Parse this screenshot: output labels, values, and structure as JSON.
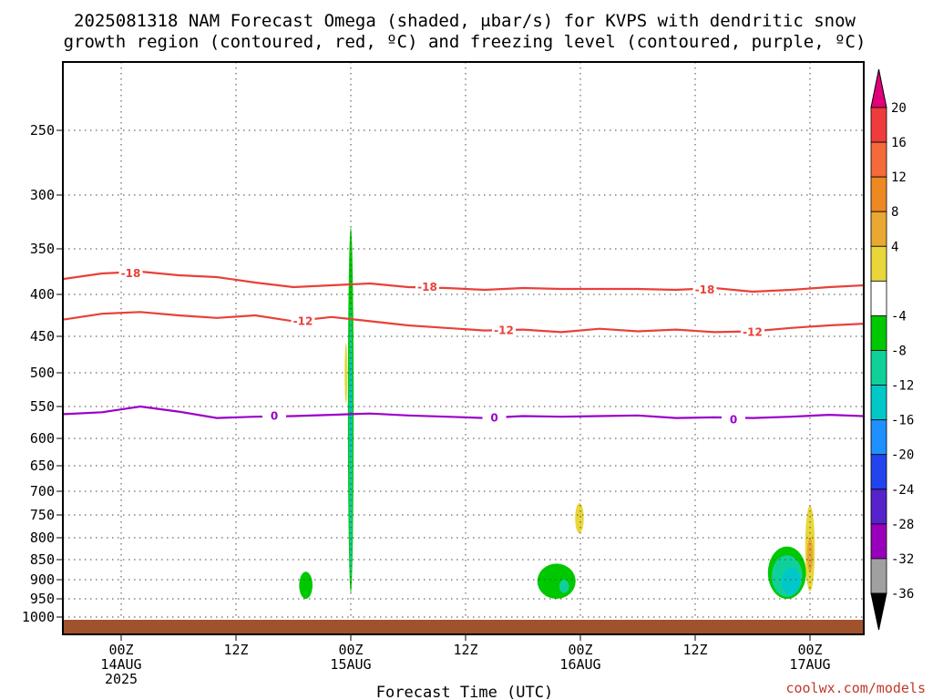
{
  "chart_data": {
    "type": "heatmap",
    "title_line1": "2025081318 NAM Forecast Omega (shaded, μbar/s) for KVPS with dendritic snow",
    "title_line2": "growth region (contoured, red, ºC) and freezing level (contoured, purple, ºC)",
    "xlabel": "Forecast Time (UTC)",
    "watermark": "coolwx.com/models",
    "y_ticks": [
      250,
      300,
      350,
      400,
      450,
      500,
      550,
      600,
      650,
      700,
      750,
      800,
      850,
      900,
      950,
      1000
    ],
    "x_ticks": [
      {
        "hour": 0,
        "top": "00Z",
        "line2": "14AUG",
        "line3": "2025"
      },
      {
        "hour": 12,
        "top": "12Z",
        "line2": "",
        "line3": ""
      },
      {
        "hour": 24,
        "top": "00Z",
        "line2": "15AUG",
        "line3": ""
      },
      {
        "hour": 36,
        "top": "12Z",
        "line2": "",
        "line3": ""
      },
      {
        "hour": 48,
        "top": "00Z",
        "line2": "16AUG",
        "line3": ""
      },
      {
        "hour": 60,
        "top": "12Z",
        "line2": "",
        "line3": ""
      },
      {
        "hour": 72,
        "top": "00Z",
        "line2": "17AUG",
        "line3": ""
      }
    ],
    "colorbar": {
      "labels": [
        "20",
        "16",
        "12",
        "8",
        "4",
        "-4",
        "-8",
        "-12",
        "-16",
        "-20",
        "-24",
        "-28",
        "-32",
        "-36"
      ],
      "bands_top_to_bottom": [
        "#ee3b3b",
        "#f56a3a",
        "#ee8822",
        "#e8a832",
        "#e8d63a",
        "#ffffff",
        "#00c800",
        "#10d09a",
        "#00c8c8",
        "#1e90ff",
        "#2244ee",
        "#5522cc",
        "#9900bb",
        "#a0a0a0"
      ],
      "top_arrow_color": "#e0007a",
      "bottom_arrow_color": "#000000"
    },
    "series": [
      {
        "name": "-18",
        "color": "#e8413a",
        "x": [
          -6,
          -2,
          2,
          6,
          10,
          14,
          18,
          22,
          26,
          30,
          34,
          38,
          42,
          46,
          50,
          54,
          58,
          62,
          66,
          70,
          74,
          78,
          82
        ],
        "y": [
          383,
          377,
          375,
          379,
          381,
          387,
          392,
          390,
          388,
          392,
          393,
          395,
          393,
          394,
          394,
          394,
          395,
          393,
          397,
          395,
          392,
          390,
          391
        ],
        "labels": [
          {
            "x": 1,
            "y": 377
          },
          {
            "x": 32,
            "y": 392
          },
          {
            "x": 61,
            "y": 395
          }
        ]
      },
      {
        "name": "-12",
        "color": "#e8413a",
        "x": [
          -6,
          -2,
          2,
          6,
          10,
          14,
          18,
          22,
          26,
          30,
          34,
          38,
          42,
          46,
          50,
          54,
          58,
          62,
          66,
          70,
          74,
          78,
          82
        ],
        "y": [
          430,
          423,
          421,
          425,
          428,
          425,
          432,
          427,
          432,
          437,
          440,
          443,
          442,
          445,
          441,
          444,
          442,
          445,
          444,
          440,
          437,
          435,
          441
        ],
        "labels": [
          {
            "x": 19,
            "y": 432
          },
          {
            "x": 40,
            "y": 443
          },
          {
            "x": 66,
            "y": 445
          }
        ]
      },
      {
        "name": "0",
        "color": "#9a00c8",
        "x": [
          -6,
          -2,
          2,
          6,
          10,
          14,
          18,
          22,
          26,
          30,
          34,
          38,
          42,
          46,
          50,
          54,
          58,
          62,
          66,
          70,
          74,
          78,
          82
        ],
        "y": [
          562,
          559,
          550,
          558,
          568,
          566,
          565,
          563,
          561,
          564,
          566,
          568,
          565,
          566,
          565,
          564,
          568,
          567,
          568,
          566,
          563,
          565,
          567
        ],
        "labels": [
          {
            "x": 16,
            "y": 565
          },
          {
            "x": 39,
            "y": 568
          },
          {
            "x": 64,
            "y": 571
          }
        ]
      }
    ],
    "shaded_areas": [
      {
        "value": "-4",
        "color": "#00c800",
        "cx": 24,
        "p_top": 330,
        "p_bot": 935,
        "half_w": 0.3
      },
      {
        "value": "-8",
        "color": "#10d09a",
        "cx": 24,
        "p_top": 410,
        "p_bot": 900,
        "half_w": 0.17
      },
      {
        "value": "-12",
        "color": "#00c8c8",
        "cx": 24,
        "p_top": 470,
        "p_bot": 640,
        "half_w": 0.08
      },
      {
        "value": "4",
        "color": "#e8d63a",
        "cx": 23.5,
        "p_top": 460,
        "p_bot": 545,
        "half_w": 0.12
      },
      {
        "value": "-4",
        "color": "#00c800",
        "cx": 19.3,
        "p_top": 880,
        "p_bot": 950,
        "half_w": 0.7
      },
      {
        "value": "-4",
        "color": "#00c800",
        "cx": 45.5,
        "p_top": 860,
        "p_bot": 950,
        "half_w": 2.0
      },
      {
        "value": "-8",
        "color": "#10d09a",
        "cx": 46.3,
        "p_top": 900,
        "p_bot": 935,
        "half_w": 0.5
      },
      {
        "value": "4",
        "color": "#e8d63a",
        "cx": 47.9,
        "p_top": 725,
        "p_bot": 790,
        "half_w": 0.45
      },
      {
        "value": "-4",
        "color": "#00c800",
        "cx": 69.6,
        "p_top": 820,
        "p_bot": 950,
        "half_w": 2.0
      },
      {
        "value": "-8",
        "color": "#10d09a",
        "cx": 69.6,
        "p_top": 840,
        "p_bot": 945,
        "half_w": 1.6
      },
      {
        "value": "-12",
        "color": "#00c8c8",
        "cx": 70.0,
        "p_top": 870,
        "p_bot": 940,
        "half_w": 1.0
      },
      {
        "value": "4",
        "color": "#e8d63a",
        "cx": 72.0,
        "p_top": 730,
        "p_bot": 930,
        "half_w": 0.5
      },
      {
        "value": "8",
        "color": "#e8a832",
        "cx": 72.0,
        "p_top": 800,
        "p_bot": 880,
        "half_w": 0.3
      }
    ],
    "terrain_color": "#a0522d",
    "grid": "dotted"
  }
}
